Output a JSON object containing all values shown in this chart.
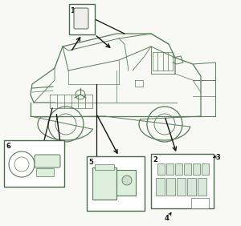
{
  "bg_color": "#ffffff",
  "fig_width": 3.0,
  "fig_height": 2.82,
  "dpi": 100,
  "image_b64": ""
}
